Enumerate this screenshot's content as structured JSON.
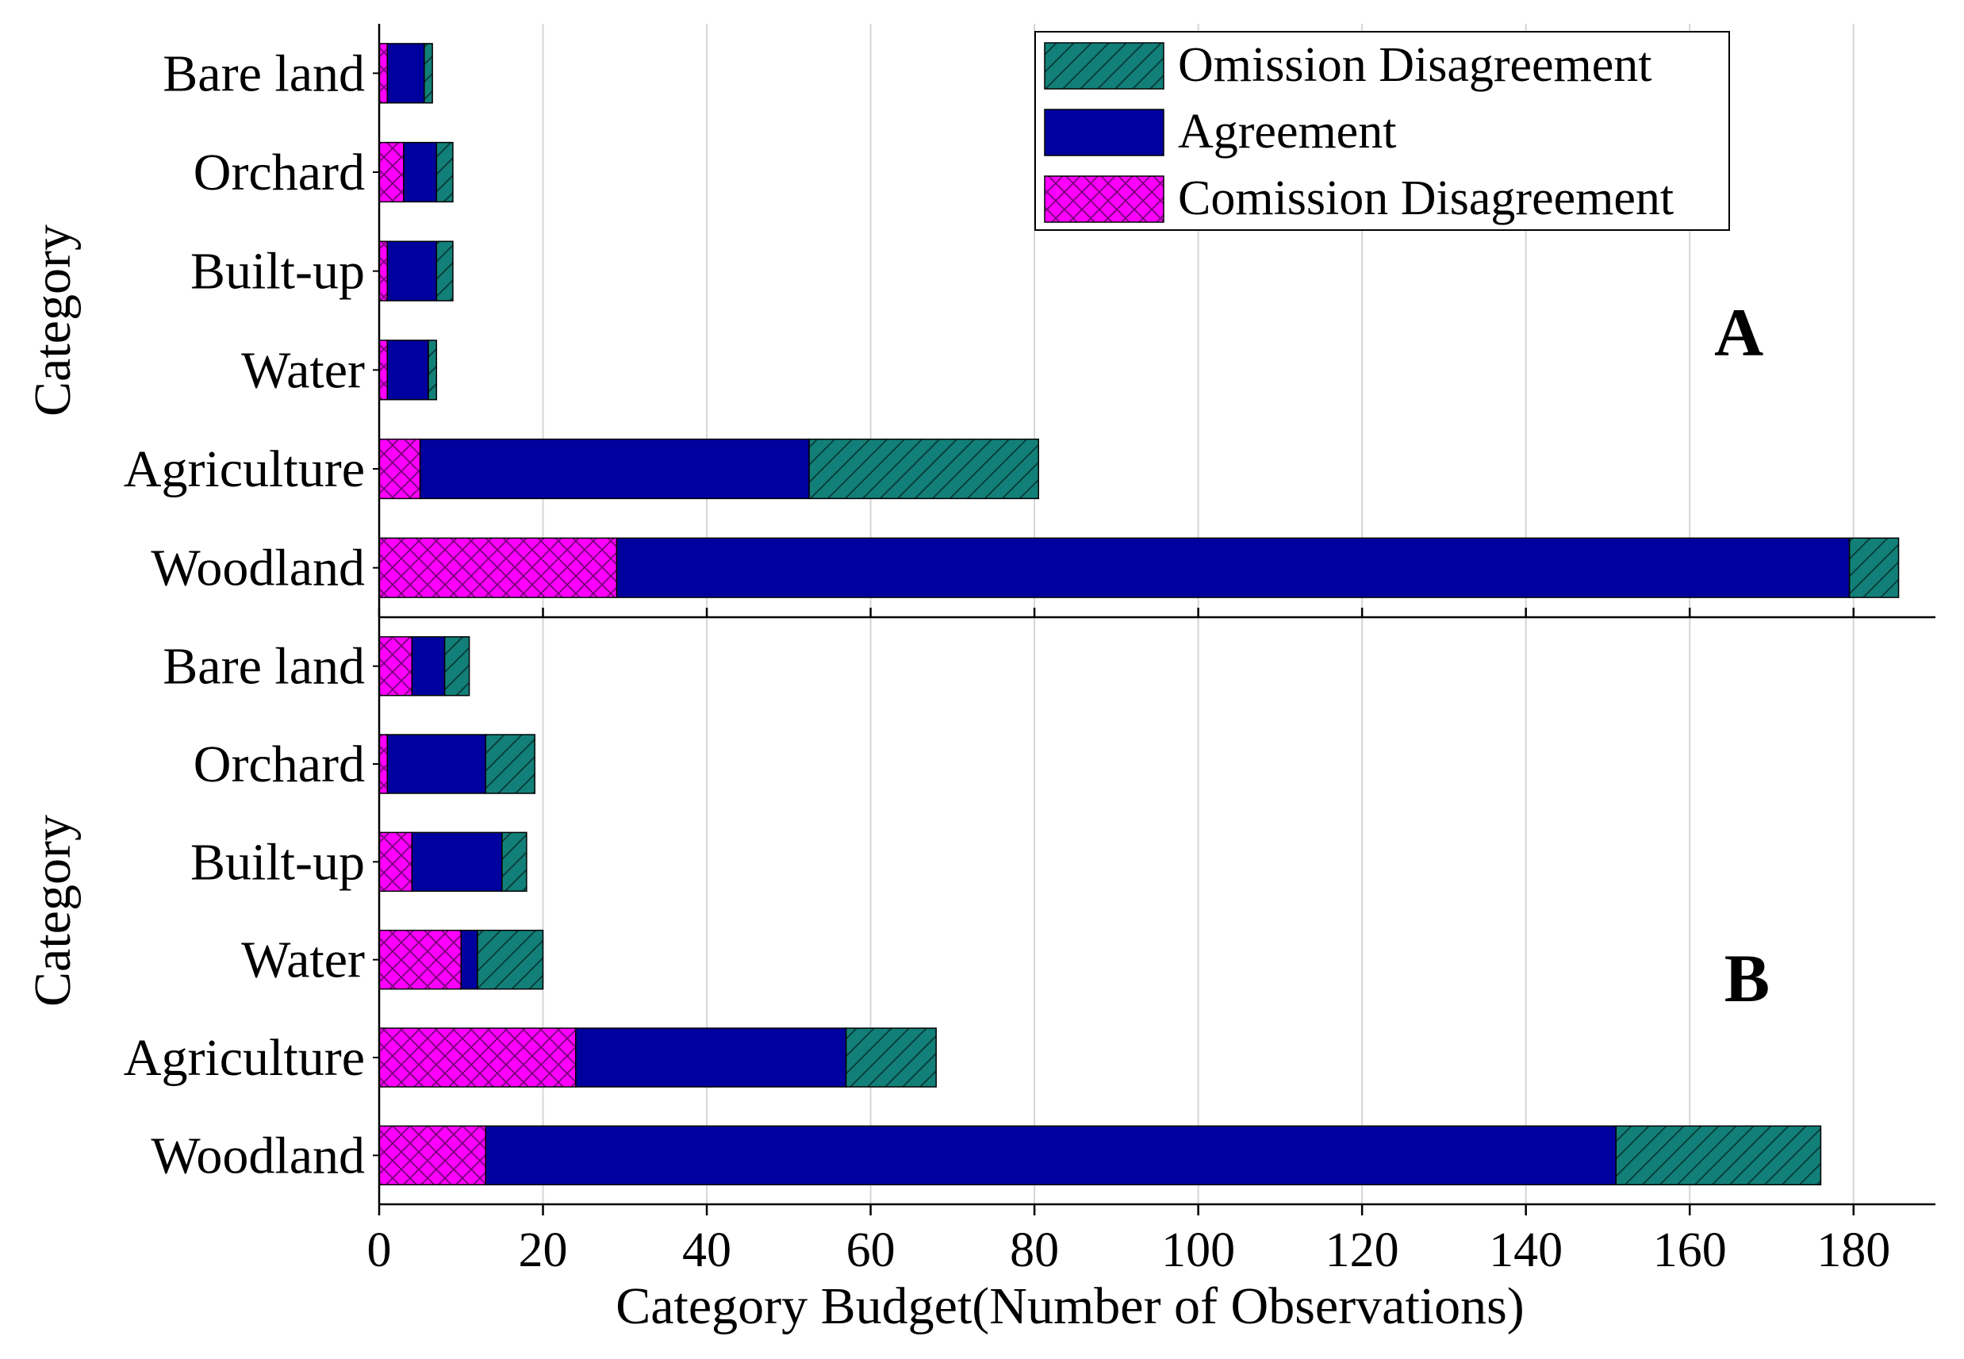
{
  "chart_data": {
    "type": "bar",
    "orientation": "horizontal",
    "stacked": true,
    "xlabel": "Category Budget(Number of Observations)",
    "xlim": [
      0,
      190
    ],
    "xticks": [
      0,
      20,
      40,
      60,
      80,
      100,
      120,
      140,
      160,
      180
    ],
    "grid": "vertical",
    "legend": {
      "placement": "top-right",
      "entries": [
        {
          "name": "Omission Disagreement",
          "color": "#128079",
          "pattern": "hatch"
        },
        {
          "name": "Agreement",
          "color": "#00009e",
          "pattern": "solid"
        },
        {
          "name": "Comission Disagreement",
          "color": "#ff00ff",
          "pattern": "cross-hatch"
        }
      ]
    },
    "series_order": [
      "Comission Disagreement",
      "Agreement",
      "Omission Disagreement"
    ],
    "panels": [
      {
        "label": "A",
        "ylabel": "Category",
        "categories": [
          "Bare land",
          "Orchard",
          "Built-up",
          "Water",
          "Agriculture",
          "Woodland"
        ],
        "series": [
          {
            "name": "Comission Disagreement",
            "values": [
              1,
              3,
              1,
              1,
              5,
              29
            ]
          },
          {
            "name": "Agreement",
            "values": [
              4.5,
              4,
              6,
              5,
              47.5,
              150.5
            ]
          },
          {
            "name": "Omission Disagreement",
            "values": [
              1,
              2,
              2,
              1,
              28,
              6
            ]
          }
        ]
      },
      {
        "label": "B",
        "ylabel": "Category",
        "categories": [
          "Bare land",
          "Orchard",
          "Built-up",
          "Water",
          "Agriculture",
          "Woodland"
        ],
        "series": [
          {
            "name": "Comission Disagreement",
            "values": [
              4,
              1,
              4,
              10,
              24,
              13
            ]
          },
          {
            "name": "Agreement",
            "values": [
              4,
              12,
              11,
              2,
              33,
              138
            ]
          },
          {
            "name": "Omission Disagreement",
            "values": [
              3,
              6,
              3,
              8,
              11,
              25
            ]
          }
        ]
      }
    ]
  }
}
